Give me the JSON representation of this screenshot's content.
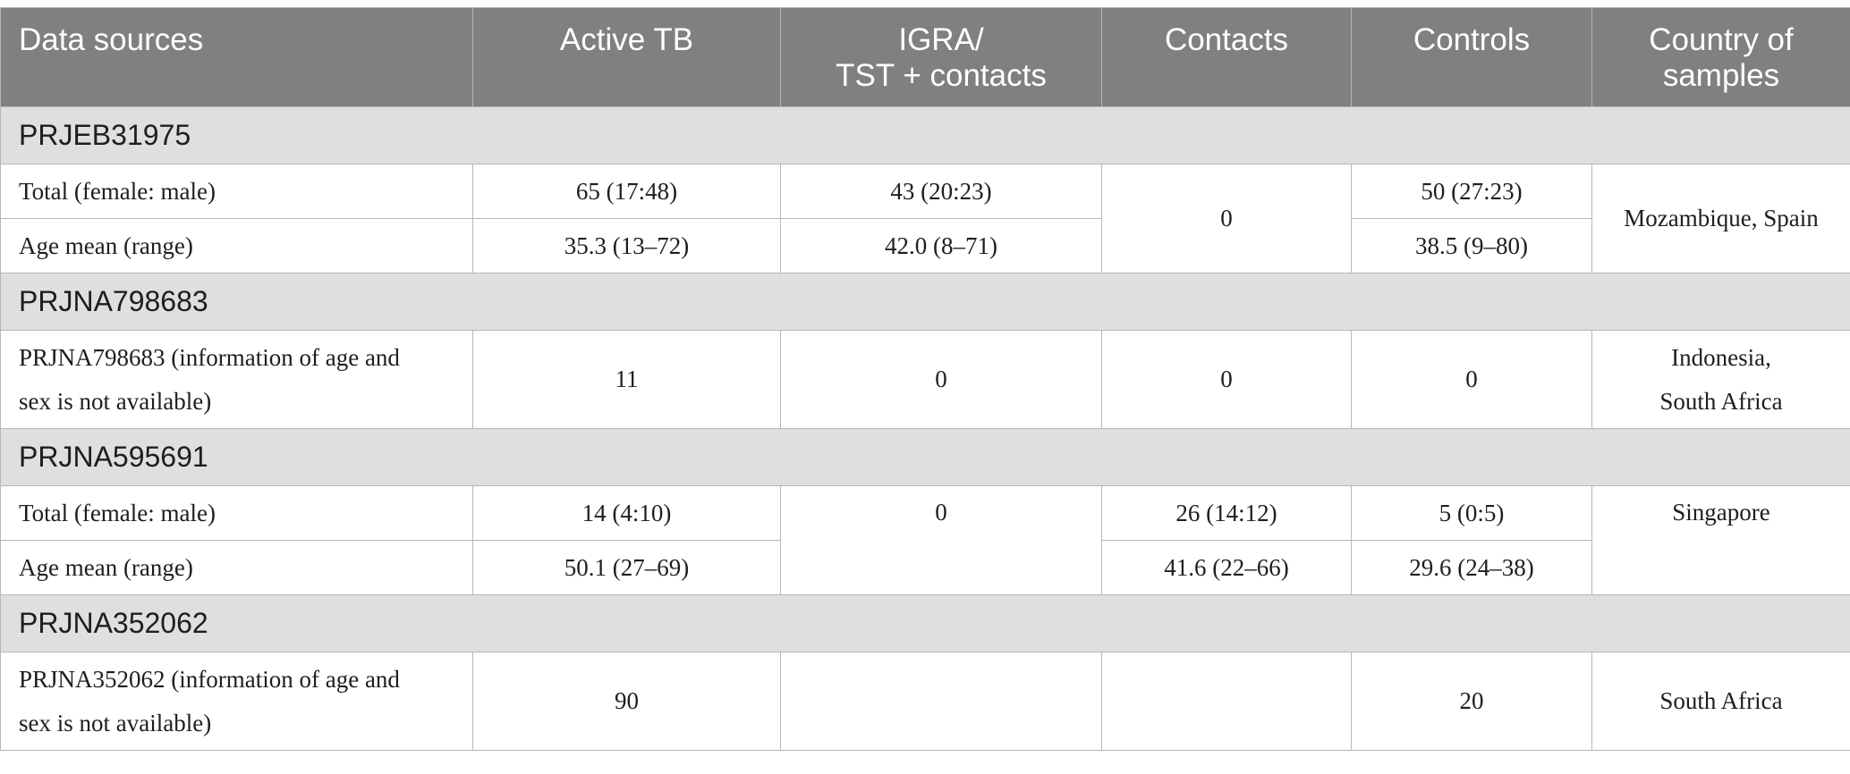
{
  "table": {
    "headers": [
      "Data sources",
      "Active TB",
      "IGRA/\nTST + contacts",
      "Contacts",
      "Controls",
      "Country of samples"
    ],
    "header_lines": {
      "igra_line1": "IGRA/",
      "igra_line2": "TST + contacts",
      "country_line1": "Country of",
      "country_line2": "samples"
    },
    "groups": [
      {
        "name": "PRJEB31975",
        "rows": [
          {
            "label": "Total (female: male)",
            "active_tb": "65 (17:48)",
            "igra": "43 (20:23)",
            "contacts": "0",
            "controls": "50 (27:23)",
            "country": "Mozambique, Spain"
          },
          {
            "label": "Age mean (range)",
            "active_tb": "35.3 (13–72)",
            "igra": "42.0 (8–71)",
            "controls": "38.5 (9–80)"
          }
        ]
      },
      {
        "name": "PRJNA798683",
        "rows": [
          {
            "label_line1": "PRJNA798683 (information of age and",
            "label_line2": "sex is not available)",
            "active_tb": "11",
            "igra": "0",
            "contacts": "0",
            "controls": "0",
            "country_line1": "Indonesia,",
            "country_line2": "South Africa"
          }
        ]
      },
      {
        "name": "PRJNA595691",
        "rows": [
          {
            "label": "Total (female: male)",
            "active_tb": "14 (4:10)",
            "igra": "0",
            "contacts": "26 (14:12)",
            "controls": "5 (0:5)",
            "country": "Singapore"
          },
          {
            "label": "Age mean (range)",
            "active_tb": "50.1 (27–69)",
            "contacts": "41.6 (22–66)",
            "controls": "29.6 (24–38)"
          }
        ]
      },
      {
        "name": "PRJNA352062",
        "rows": [
          {
            "label_line1": "PRJNA352062 (information of age and",
            "label_line2": "sex is not available)",
            "active_tb": "90",
            "igra": "",
            "contacts": "",
            "controls": "20",
            "country": "South Africa"
          }
        ]
      }
    ]
  }
}
